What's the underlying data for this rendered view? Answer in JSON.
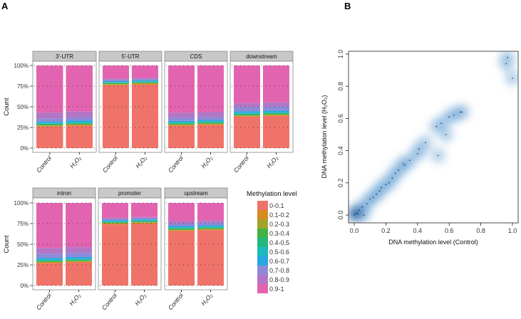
{
  "panel_labels": {
    "a": "A",
    "b": "B"
  },
  "chart_data": [
    {
      "type": "bar",
      "stacked": true,
      "normalized": true,
      "ylabel": "Count",
      "yticks": [
        "0%",
        "25%",
        "50%",
        "75%",
        "100%"
      ],
      "categories": [
        "Control",
        "H₂O₂"
      ],
      "legend": {
        "title": "Methylation level",
        "placement": "right",
        "levels": [
          "0-0.1",
          "0.1-0.2",
          "0.2-0.3",
          "0.3-0.4",
          "0.4-0.5",
          "0.5-0.6",
          "0.6-0.7",
          "0.7-0.8",
          "0.8-0.9",
          "0.9-1"
        ],
        "colors": [
          "#F0736A",
          "#D58B1E",
          "#A3A22C",
          "#43B044",
          "#22B77E",
          "#1DB9BE",
          "#2AA6E0",
          "#8D8AD8",
          "#B376C4",
          "#E264B0"
        ]
      },
      "facets": [
        {
          "name": "3'-UTR",
          "bars": [
            [
              0.26,
              0.01,
              0.005,
              0.01,
              0.01,
              0.01,
              0.015,
              0.04,
              0.07,
              0.57
            ],
            [
              0.27,
              0.01,
              0.005,
              0.01,
              0.01,
              0.01,
              0.02,
              0.04,
              0.07,
              0.555
            ]
          ]
        },
        {
          "name": "5'-UTR",
          "bars": [
            [
              0.76,
              0.01,
              0.005,
              0.01,
              0.005,
              0.01,
              0.01,
              0.02,
              0.01,
              0.16
            ],
            [
              0.77,
              0.01,
              0.005,
              0.01,
              0.005,
              0.01,
              0.01,
              0.02,
              0.01,
              0.15
            ]
          ]
        },
        {
          "name": "CDS",
          "bars": [
            [
              0.27,
              0.01,
              0.005,
              0.01,
              0.01,
              0.01,
              0.015,
              0.04,
              0.06,
              0.57
            ],
            [
              0.28,
              0.01,
              0.005,
              0.01,
              0.01,
              0.01,
              0.015,
              0.04,
              0.06,
              0.56
            ]
          ]
        },
        {
          "name": "downstream",
          "bars": [
            [
              0.38,
              0.01,
              0.005,
              0.01,
              0.01,
              0.01,
              0.02,
              0.05,
              0.05,
              0.455
            ],
            [
              0.39,
              0.01,
              0.005,
              0.01,
              0.01,
              0.01,
              0.02,
              0.05,
              0.05,
              0.445
            ]
          ]
        },
        {
          "name": "intron",
          "bars": [
            [
              0.27,
              0.01,
              0.005,
              0.01,
              0.01,
              0.01,
              0.02,
              0.05,
              0.07,
              0.545
            ],
            [
              0.28,
              0.01,
              0.005,
              0.01,
              0.01,
              0.01,
              0.02,
              0.05,
              0.07,
              0.535
            ]
          ]
        },
        {
          "name": "promoter",
          "bars": [
            [
              0.74,
              0.01,
              0.005,
              0.01,
              0.005,
              0.01,
              0.01,
              0.02,
              0.01,
              0.18
            ],
            [
              0.75,
              0.01,
              0.005,
              0.01,
              0.005,
              0.01,
              0.01,
              0.02,
              0.01,
              0.17
            ]
          ]
        },
        {
          "name": "upstream",
          "bars": [
            [
              0.66,
              0.01,
              0.005,
              0.01,
              0.01,
              0.01,
              0.015,
              0.03,
              0.03,
              0.22
            ],
            [
              0.67,
              0.01,
              0.005,
              0.01,
              0.01,
              0.01,
              0.015,
              0.03,
              0.03,
              0.21
            ]
          ]
        }
      ]
    },
    {
      "type": "scatter",
      "style": "smoothed density scatter",
      "xlabel": "DNA methylation level (Control)",
      "ylabel": "DNA methylation level (H₂O₂)",
      "xlim": [
        -0.04,
        1.03
      ],
      "ylim": [
        -0.04,
        1.03
      ],
      "xticks": [
        "0.0",
        "0.2",
        "0.4",
        "0.6",
        "0.8",
        "1.0"
      ],
      "yticks": [
        "0.0",
        "0.2",
        "0.4",
        "0.6",
        "0.8",
        "1.0"
      ],
      "color": "#2F6FA8",
      "points": [
        [
          0,
          0
        ],
        [
          0.01,
          0.01
        ],
        [
          0.02,
          0.01
        ],
        [
          0.03,
          0.03
        ],
        [
          0.05,
          0.05
        ],
        [
          0.06,
          0
        ],
        [
          0.08,
          0.07
        ],
        [
          0.1,
          0.1
        ],
        [
          0.12,
          0.11
        ],
        [
          0.14,
          0.13
        ],
        [
          0.16,
          0.15
        ],
        [
          0.17,
          0.17
        ],
        [
          0.2,
          0.19
        ],
        [
          0.22,
          0.2
        ],
        [
          0.24,
          0.23
        ],
        [
          0.26,
          0.26
        ],
        [
          0.28,
          0.28
        ],
        [
          0.31,
          0.32
        ],
        [
          0.32,
          0.31
        ],
        [
          0.35,
          0.34
        ],
        [
          0.4,
          0.38
        ],
        [
          0.41,
          0.41
        ],
        [
          0.45,
          0.45
        ],
        [
          0.52,
          0.55
        ],
        [
          0.53,
          0.37
        ],
        [
          0.55,
          0.57
        ],
        [
          0.58,
          0.5
        ],
        [
          0.6,
          0.61
        ],
        [
          0.63,
          0.62
        ],
        [
          0.67,
          0.64
        ],
        [
          0.68,
          0.64
        ],
        [
          0.96,
          0.94
        ],
        [
          0.97,
          0.98
        ],
        [
          1.0,
          0.85
        ]
      ]
    }
  ]
}
